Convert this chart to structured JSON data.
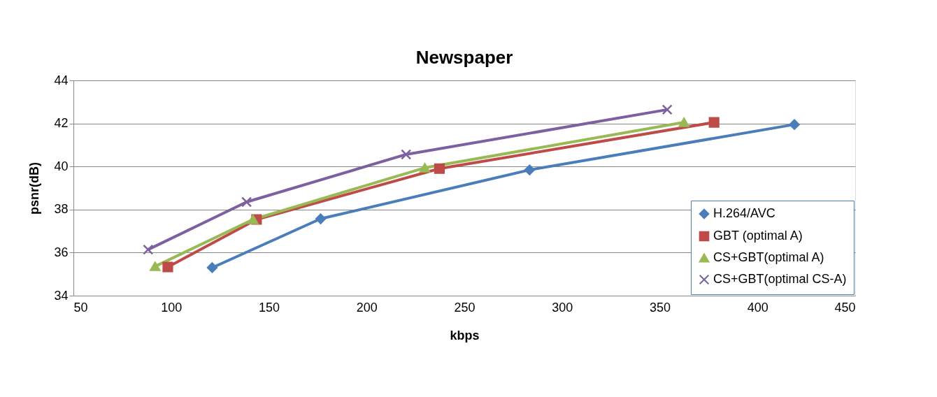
{
  "chart_data": {
    "type": "line",
    "title": "Newspaper",
    "xlabel": "kbps",
    "ylabel": "psnr(dB)",
    "xlim": [
      50,
      450
    ],
    "xticks": [
      50,
      100,
      150,
      200,
      250,
      300,
      350,
      400,
      450
    ],
    "ylim": [
      34,
      44
    ],
    "yticks": [
      34,
      36,
      38,
      40,
      42,
      44
    ],
    "grid": "y",
    "legend": "bottom right",
    "line_style": "solid",
    "series": [
      {
        "name": "H.264/AVC",
        "color": "#4a7ebb",
        "marker": "diamond",
        "x": [
          121,
          176.5,
          283.4,
          418.9
        ],
        "values": [
          35.3,
          37.57,
          39.84,
          41.95
        ]
      },
      {
        "name": "GBT (optimal A)",
        "color": "#be4b48",
        "marker": "square",
        "x": [
          98.3,
          143.7,
          237.3,
          377.8
        ],
        "values": [
          35.33,
          37.54,
          39.9,
          42.05
        ]
      },
      {
        "name": "CS+GBT(optimal A)",
        "color": "#98b954",
        "marker": "triangle",
        "x": [
          91.8,
          141.9,
          229.8,
          362.4
        ],
        "values": [
          35.36,
          37.54,
          39.94,
          42.05
        ]
      },
      {
        "name": "CS+GBT(optimal CS-A)",
        "color": "#7d60a0",
        "marker": "cross",
        "x": [
          88.2,
          138.6,
          220.2,
          353.8
        ],
        "values": [
          36.14,
          38.35,
          40.56,
          42.64
        ]
      }
    ]
  }
}
